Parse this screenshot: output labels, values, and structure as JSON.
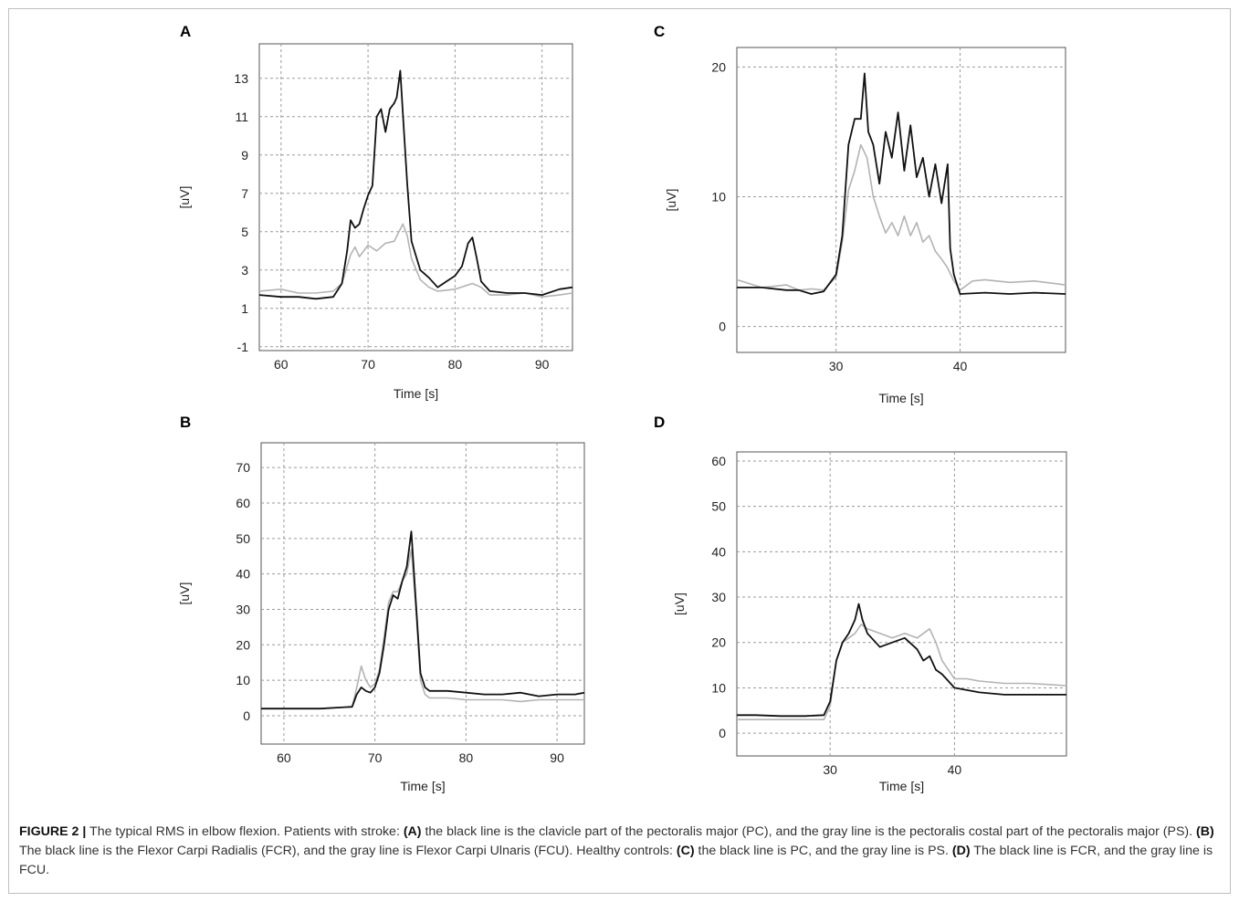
{
  "caption": {
    "figure_label": "FIGURE 2 |",
    "segments": [
      {
        "text": " The typical RMS in elbow flexion. Patients with stroke: ",
        "bold": false
      },
      {
        "text": "(A)",
        "bold": true
      },
      {
        "text": " the black line is the clavicle part of the pectoralis major (PC), and the gray line is the pectoralis costal part of the pectoralis major (PS). ",
        "bold": false
      },
      {
        "text": "(B)",
        "bold": true
      },
      {
        "text": " The black line is the Flexor Carpi Radialis (FCR), and the gray line is Flexor Carpi Ulnaris (FCU). Healthy controls: ",
        "bold": false
      },
      {
        "text": "(C)",
        "bold": true
      },
      {
        "text": " the black line is PC, and the gray line is PS. ",
        "bold": false
      },
      {
        "text": "(D)",
        "bold": true
      },
      {
        "text": " The black line is FCR, and the gray line is FCU.",
        "bold": false
      }
    ]
  },
  "colors": {
    "black_series": "#111111",
    "gray_series": "#b3b3b3",
    "grid": "#9a9a9a",
    "axis": "#555555"
  },
  "chart_data": [
    {
      "panel": "A",
      "type": "line",
      "xlabel": "Time [s]",
      "ylabel": "[uV]",
      "xlim": [
        57.5,
        93.5
      ],
      "ylim": [
        -1.2,
        14.8
      ],
      "xticks": [
        60,
        70,
        80,
        90
      ],
      "yticks": [
        -1,
        1,
        3,
        5,
        7,
        9,
        11,
        13
      ],
      "grid": true,
      "series": [
        {
          "color": "black",
          "x": [
            57.5,
            60,
            62,
            64,
            66,
            67,
            67.6,
            68,
            68.5,
            69,
            69.5,
            70,
            70.5,
            71,
            71.5,
            72,
            72.5,
            73,
            73.3,
            73.7,
            74,
            74.5,
            75,
            76,
            77,
            78,
            79,
            80,
            80.8,
            81.5,
            82,
            82.5,
            83,
            84,
            86,
            88,
            90,
            92,
            93.5
          ],
          "y": [
            1.7,
            1.6,
            1.6,
            1.5,
            1.6,
            2.3,
            4.0,
            5.6,
            5.2,
            5.4,
            6.2,
            6.9,
            7.4,
            11.0,
            11.4,
            10.2,
            11.4,
            11.7,
            12.0,
            13.4,
            11.2,
            7.5,
            4.5,
            3.0,
            2.6,
            2.1,
            2.4,
            2.7,
            3.2,
            4.4,
            4.7,
            3.6,
            2.4,
            1.9,
            1.8,
            1.8,
            1.7,
            2.0,
            2.1
          ]
        },
        {
          "color": "gray",
          "x": [
            57.5,
            60,
            62,
            64,
            66,
            67,
            68,
            68.5,
            69,
            70,
            71,
            72,
            73,
            74,
            74.5,
            75,
            76,
            77,
            78,
            80,
            82,
            83,
            84,
            86,
            88,
            90,
            92,
            93.5
          ],
          "y": [
            1.9,
            2.0,
            1.8,
            1.8,
            1.9,
            2.3,
            3.8,
            4.2,
            3.7,
            4.3,
            4.0,
            4.4,
            4.5,
            5.4,
            4.8,
            3.6,
            2.5,
            2.1,
            1.9,
            2.0,
            2.3,
            2.1,
            1.7,
            1.7,
            1.8,
            1.6,
            1.7,
            1.8
          ]
        }
      ]
    },
    {
      "panel": "B",
      "type": "line",
      "xlabel": "Time [s]",
      "ylabel": "[uV]",
      "xlim": [
        57.5,
        93
      ],
      "ylim": [
        -8,
        77
      ],
      "xticks": [
        60,
        70,
        80,
        90
      ],
      "yticks": [
        0,
        10,
        20,
        30,
        40,
        50,
        60,
        70
      ],
      "grid": true,
      "series": [
        {
          "color": "black",
          "x": [
            57.5,
            60,
            62,
            64,
            66,
            67.5,
            68,
            68.5,
            69,
            69.5,
            70,
            70.5,
            71,
            71.5,
            72,
            72.5,
            73,
            73.5,
            74,
            74.5,
            75,
            75.5,
            76,
            78,
            80,
            82,
            84,
            86,
            88,
            90,
            92,
            93
          ],
          "y": [
            2,
            2,
            2,
            2,
            2.3,
            2.5,
            6,
            8,
            7,
            6.5,
            8,
            12,
            20,
            30,
            34,
            33,
            38,
            42,
            52,
            32,
            12,
            8,
            7,
            7,
            6.5,
            6,
            6,
            6.5,
            5.5,
            6,
            6,
            6.5
          ]
        },
        {
          "color": "gray",
          "x": [
            57.5,
            60,
            62,
            64,
            66,
            67.5,
            68,
            68.5,
            69,
            69.5,
            70,
            70.5,
            71,
            71.5,
            72,
            72.5,
            73,
            73.5,
            74,
            74.5,
            75,
            75.5,
            76,
            78,
            80,
            82,
            84,
            86,
            88,
            90,
            92,
            93
          ],
          "y": [
            2,
            2,
            2,
            2,
            2.3,
            2.5,
            8,
            14,
            10,
            8,
            9,
            13,
            22,
            32,
            35,
            35,
            38,
            40,
            47,
            30,
            10,
            6,
            5,
            5,
            4.5,
            4.5,
            4.5,
            4,
            4.5,
            4.5,
            4.5,
            4.5
          ]
        }
      ]
    },
    {
      "panel": "C",
      "type": "line",
      "xlabel": "Time [s]",
      "ylabel": "[uV]",
      "xlim": [
        22,
        48.5
      ],
      "ylim": [
        -2,
        21.5
      ],
      "xticks": [
        30,
        40
      ],
      "yticks": [
        0,
        10,
        20
      ],
      "grid": true,
      "series": [
        {
          "color": "black",
          "x": [
            22,
            24,
            26,
            27,
            28,
            29,
            30,
            30.5,
            31,
            31.5,
            32,
            32.3,
            32.6,
            33,
            33.5,
            34,
            34.5,
            35,
            35.5,
            36,
            36.5,
            37,
            37.5,
            38,
            38.5,
            39,
            39.2,
            39.5,
            40,
            42,
            44,
            46,
            48.5
          ],
          "y": [
            3,
            3,
            2.8,
            2.8,
            2.5,
            2.7,
            4,
            7,
            14,
            16,
            16,
            19.5,
            15,
            14,
            11,
            15,
            13,
            16.5,
            12,
            15.5,
            11.5,
            13,
            10,
            12.5,
            9.5,
            12.5,
            6,
            4,
            2.5,
            2.6,
            2.5,
            2.6,
            2.5
          ]
        },
        {
          "color": "gray",
          "x": [
            22,
            24,
            26,
            27,
            28,
            29,
            30,
            30.5,
            31,
            31.5,
            32,
            32.5,
            33,
            33.5,
            34,
            34.5,
            35,
            35.5,
            36,
            36.5,
            37,
            37.5,
            38,
            38.5,
            39,
            39.5,
            40,
            41,
            42,
            44,
            46,
            48.5
          ],
          "y": [
            3.6,
            3.0,
            3.2,
            2.8,
            2.9,
            2.8,
            3.8,
            6.5,
            10.5,
            12.0,
            14.0,
            13.0,
            10.0,
            8.5,
            7.2,
            8.0,
            7.0,
            8.5,
            7.0,
            8.0,
            6.5,
            7.0,
            5.8,
            5.2,
            4.5,
            3.5,
            2.8,
            3.5,
            3.6,
            3.4,
            3.5,
            3.2
          ]
        }
      ]
    },
    {
      "panel": "D",
      "type": "line",
      "xlabel": "Time [s]",
      "ylabel": "[uV]",
      "xlim": [
        22.5,
        49
      ],
      "ylim": [
        -5,
        62
      ],
      "xticks": [
        30,
        40
      ],
      "yticks": [
        0,
        10,
        20,
        30,
        40,
        50,
        60
      ],
      "grid": true,
      "series": [
        {
          "color": "black",
          "x": [
            22.5,
            24,
            26,
            28,
            29.5,
            30,
            30.5,
            31,
            31.5,
            32,
            32.3,
            32.6,
            33,
            34,
            35,
            36,
            37,
            37.5,
            38,
            38.5,
            39,
            40,
            41,
            42,
            44,
            46,
            49
          ],
          "y": [
            4,
            4,
            3.8,
            3.8,
            4,
            7,
            16,
            20,
            22,
            25,
            28.5,
            25,
            22,
            19,
            20,
            21,
            18.5,
            16,
            17,
            14,
            13,
            10,
            9.5,
            9,
            8.5,
            8.5,
            8.5
          ]
        },
        {
          "color": "gray",
          "x": [
            22.5,
            24,
            26,
            28,
            29.5,
            30,
            30.5,
            31,
            31.5,
            32,
            32.5,
            33,
            34,
            35,
            36,
            37,
            37.5,
            38,
            38.5,
            39,
            40,
            41,
            42,
            44,
            46,
            49
          ],
          "y": [
            3,
            3,
            3,
            3,
            3,
            6,
            16,
            20,
            21,
            22,
            24,
            23,
            22,
            21,
            22,
            21,
            22,
            23,
            20,
            16,
            12,
            12,
            11.5,
            11,
            11,
            10.5
          ]
        }
      ]
    }
  ]
}
